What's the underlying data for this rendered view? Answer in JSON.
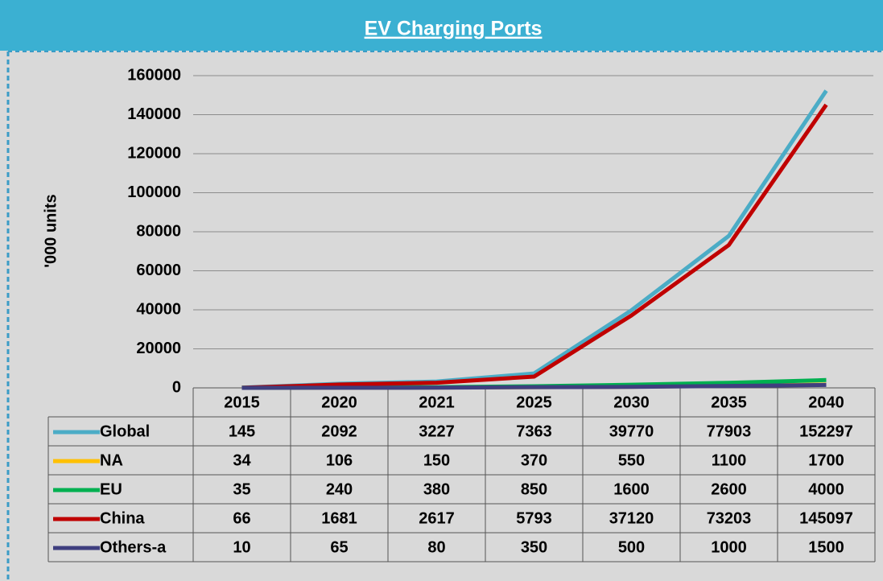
{
  "chart_data": {
    "type": "line",
    "title": "EV Charging Ports",
    "y_label": "'000 units",
    "categories": [
      "2015",
      "2020",
      "2021",
      "2025",
      "2030",
      "2035",
      "2040"
    ],
    "series": [
      {
        "name": "Global",
        "color": "#4bacc6",
        "values": [
          145,
          2092,
          3227,
          7363,
          39770,
          77903,
          152297
        ]
      },
      {
        "name": "NA",
        "color": "#ffc000",
        "values": [
          34,
          106,
          150,
          370,
          550,
          1100,
          1700
        ]
      },
      {
        "name": "EU",
        "color": "#00b050",
        "values": [
          35,
          240,
          380,
          850,
          1600,
          2600,
          4000
        ]
      },
      {
        "name": "China",
        "color": "#c00000",
        "values": [
          66,
          1681,
          2617,
          5793,
          37120,
          73203,
          145097
        ]
      },
      {
        "name": "Others-a",
        "color": "#3f3f7f",
        "values": [
          10,
          65,
          80,
          350,
          500,
          1000,
          1500
        ]
      }
    ],
    "ylim": [
      0,
      160000
    ],
    "yticks": [
      0,
      20000,
      40000,
      60000,
      80000,
      100000,
      120000,
      140000,
      160000
    ],
    "grid": true
  }
}
